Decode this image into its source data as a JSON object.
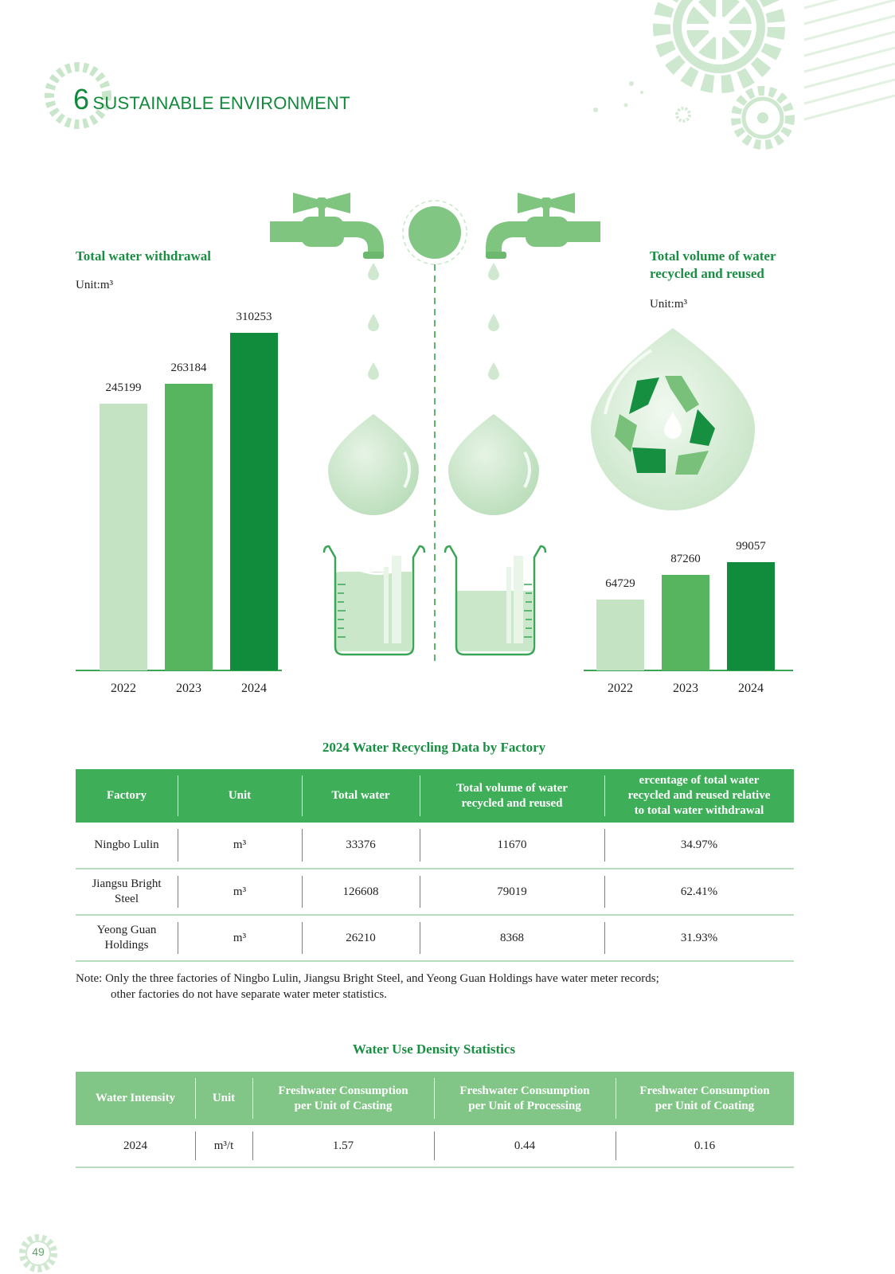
{
  "section": {
    "number": "6",
    "title": "SUSTAINABLE ENVIRONMENT"
  },
  "colors": {
    "accent": "#128a3c",
    "light": "#c4e3c3",
    "mid": "#57b560",
    "dark": "#118c3c",
    "header_bg": "#3fae58",
    "header_bg_light": "#82c687"
  },
  "withdrawal": {
    "title": "Total water withdrawal",
    "unit": "Unit:m³",
    "years": [
      "2022",
      "2023",
      "2024"
    ],
    "values": [
      245199,
      263184,
      310253
    ]
  },
  "recycled": {
    "title_line1": "Total volume of water",
    "title_line2": "recycled and reused",
    "unit": "Unit:m³",
    "years": [
      "2022",
      "2023",
      "2024"
    ],
    "values": [
      64729,
      87260,
      99057
    ]
  },
  "factory_table": {
    "caption": "2024 Water Recycling Data by Factory",
    "headers": {
      "factory": "Factory",
      "unit": "Unit",
      "total": "Total water",
      "recycled_l1": "Total volume of water",
      "recycled_l2": "recycled and reused",
      "pct_l1": "ercentage of total water",
      "pct_l2": "recycled and reused relative",
      "pct_l3": "to total water withdrawal"
    },
    "rows": [
      {
        "factory_l1": "Ningbo Lulin",
        "factory_l2": "",
        "unit": "m³",
        "total": "33376",
        "recycled": "11670",
        "pct": "34.97%"
      },
      {
        "factory_l1": "Jiangsu Bright",
        "factory_l2": "Steel",
        "unit": "m³",
        "total": "126608",
        "recycled": "79019",
        "pct": "62.41%"
      },
      {
        "factory_l1": "Yeong Guan",
        "factory_l2": "Holdings",
        "unit": "m³",
        "total": "26210",
        "recycled": "8368",
        "pct": "31.93%"
      }
    ]
  },
  "note": {
    "line1": "Note: Only the three factories of Ningbo Lulin, Jiangsu Bright Steel, and Yeong Guan Holdings have water meter records;",
    "line2": "other factories do not have separate water meter statistics."
  },
  "density_table": {
    "caption": "Water Use Density Statistics",
    "headers": {
      "intensity": "Water Intensity",
      "unit": "Unit",
      "casting_l1": "Freshwater Consumption",
      "casting_l2": "per Unit of Casting",
      "processing_l1": "Freshwater Consumption",
      "processing_l2": "per Unit of Processing",
      "coating_l1": "Freshwater Consumption",
      "coating_l2": "per Unit of Coating"
    },
    "row": {
      "year": "2024",
      "unit": "m³/t",
      "casting": "1.57",
      "processing": "0.44",
      "coating": "0.16"
    }
  },
  "page_number": "49"
}
